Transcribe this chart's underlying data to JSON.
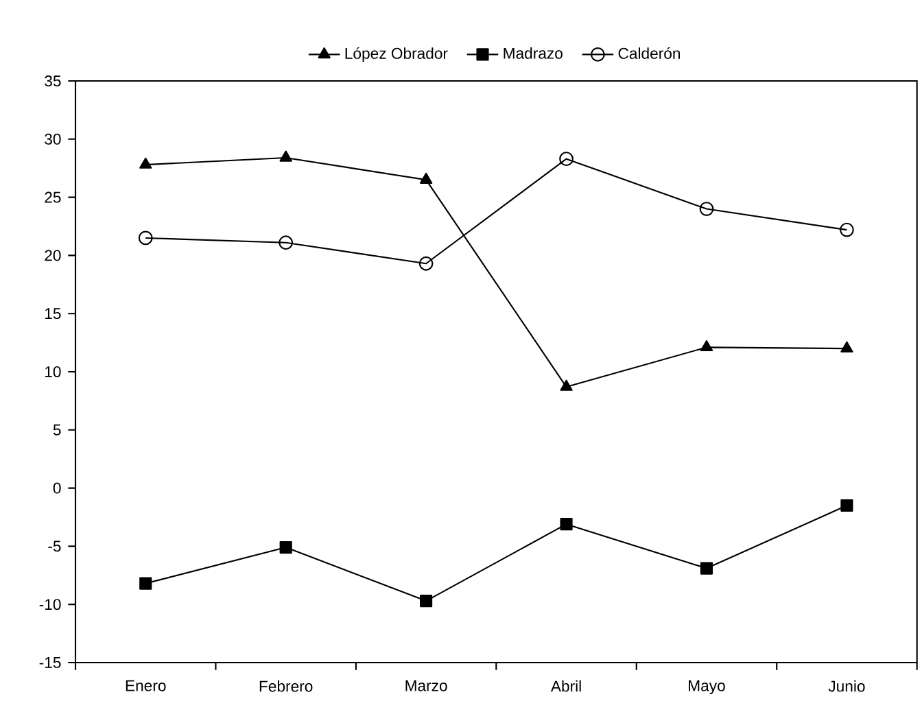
{
  "chart_data": {
    "type": "line",
    "categories": [
      "Enero",
      "Febrero",
      "Marzo",
      "Abril",
      "Mayo",
      "Junio"
    ],
    "series": [
      {
        "name": "López Obrador",
        "color": "#000000",
        "marker": "triangle",
        "values": [
          27.8,
          28.4,
          26.5,
          8.7,
          12.1,
          12.0
        ]
      },
      {
        "name": "Madrazo",
        "color": "#000000",
        "marker": "square",
        "values": [
          -8.2,
          -5.1,
          -9.7,
          -3.1,
          -6.9,
          -1.5
        ]
      },
      {
        "name": "Calderón",
        "color": "#000000",
        "marker": "circle",
        "values": [
          21.5,
          21.1,
          19.3,
          28.3,
          24.0,
          22.2
        ]
      }
    ],
    "ylim": [
      -15,
      35
    ],
    "yticks": [
      -15,
      -10,
      -5,
      0,
      5,
      10,
      15,
      20,
      25,
      30,
      35
    ],
    "grid": false,
    "legend": "top"
  }
}
